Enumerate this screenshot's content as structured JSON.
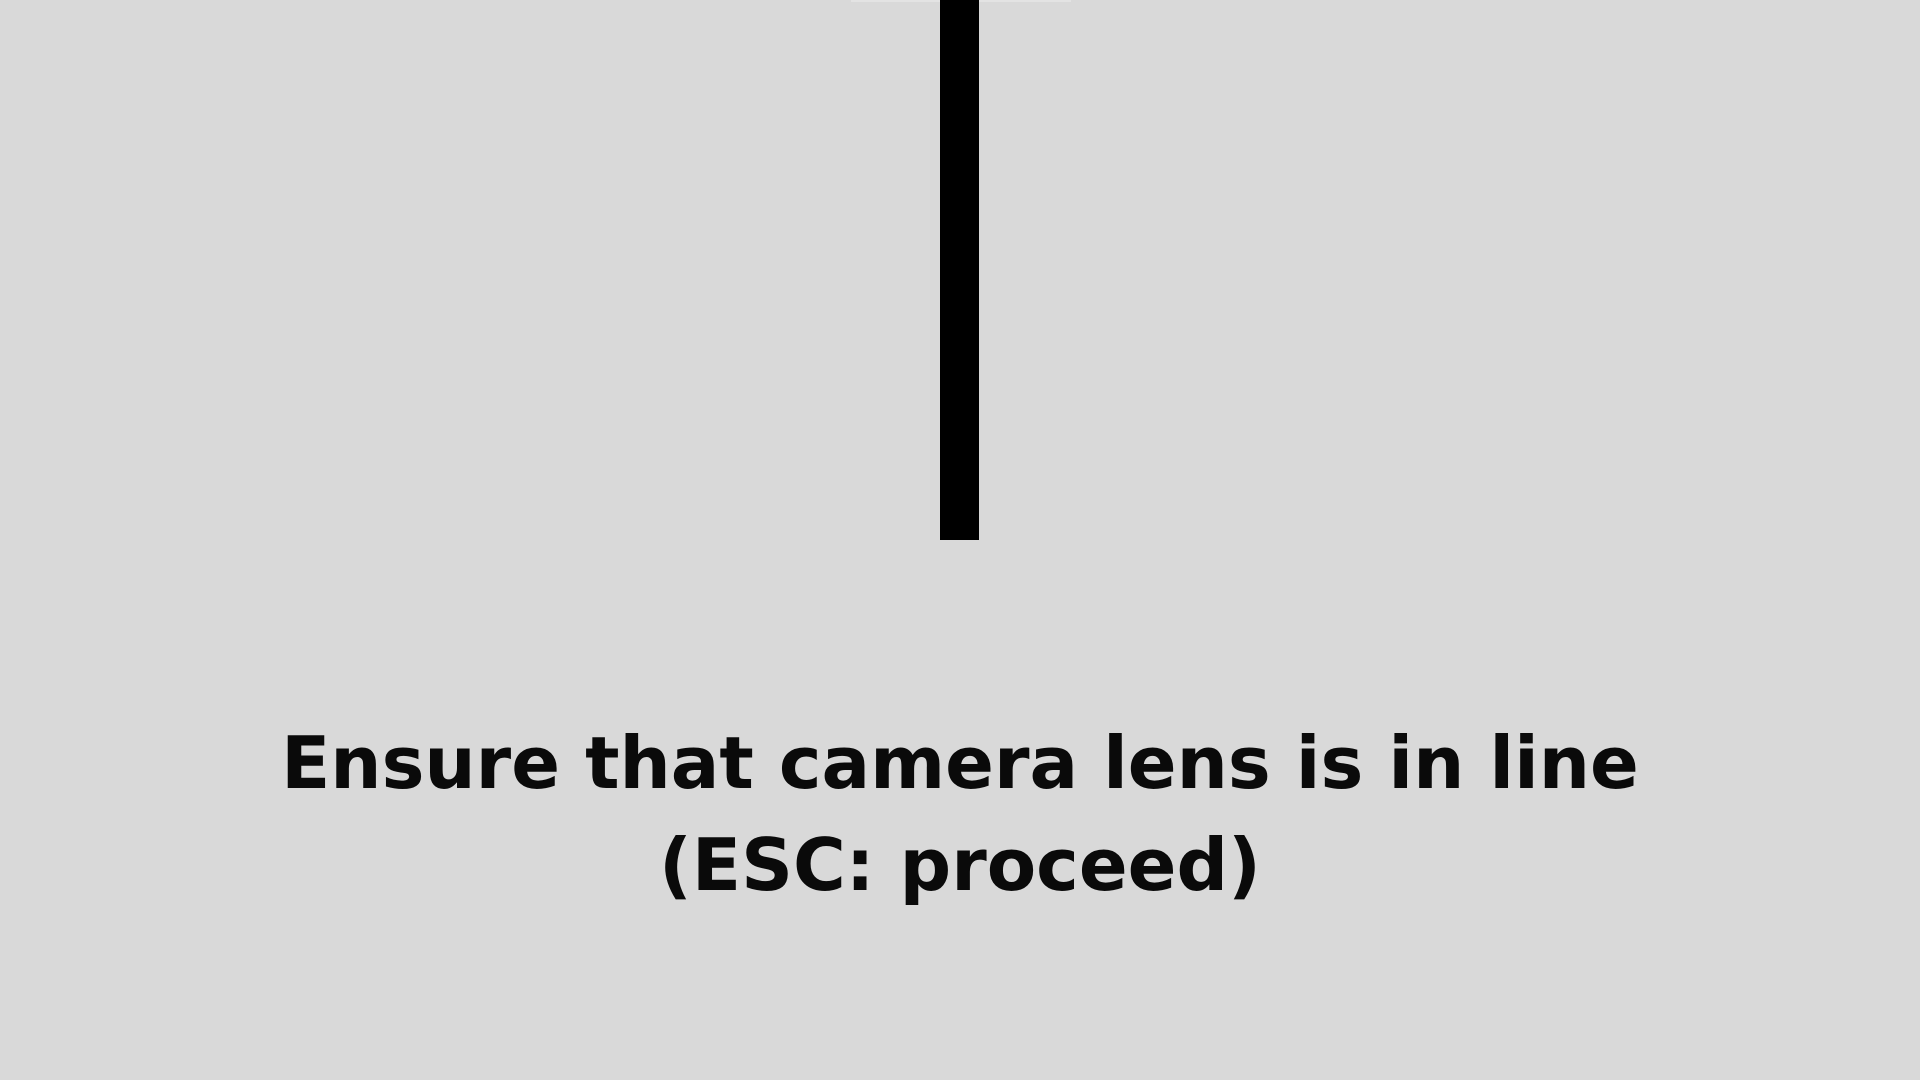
{
  "screen": {
    "background_color": "#d9d9d9",
    "line_color": "#000000",
    "text_color": "#0a0a0a"
  },
  "instruction": {
    "line1": "Ensure that camera lens is in line",
    "line2": "(ESC: proceed)"
  }
}
